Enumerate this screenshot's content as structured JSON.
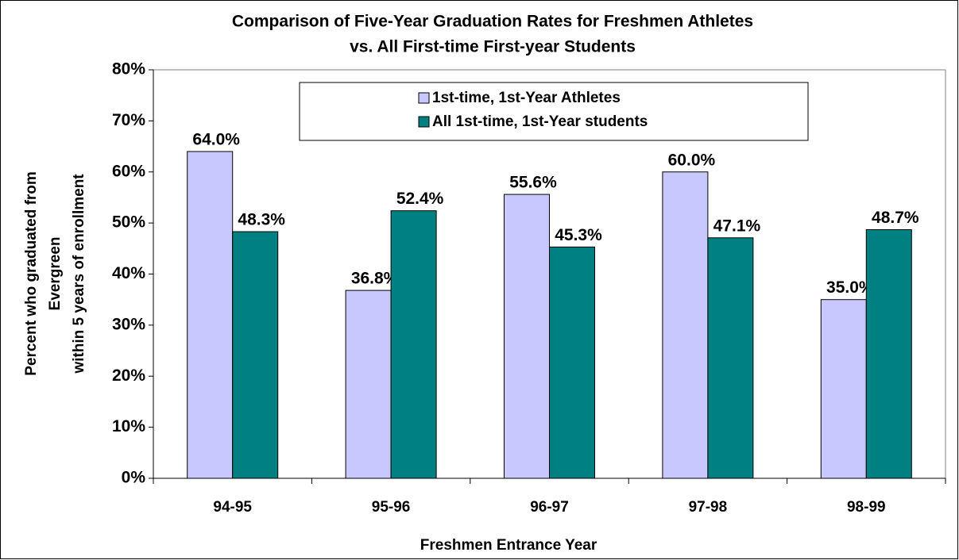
{
  "chart_data": {
    "type": "bar",
    "title": [
      "Comparison of Five-Year Graduation Rates for Freshmen Athletes",
      "vs. All First-time First-year Students"
    ],
    "x_label": "Freshmen Entrance Year",
    "y_label": [
      "Percent who graduated from",
      "Evergreen",
      "within 5 years of enrollment"
    ],
    "categories": [
      "94-95",
      "95-96",
      "96-97",
      "97-98",
      "98-99"
    ],
    "series": [
      {
        "name": "1st-time, 1st-Year Athletes",
        "color": "#c8c8ff",
        "values": [
          64.0,
          36.8,
          55.6,
          60.0,
          35.0
        ],
        "value_labels": [
          "64.0%",
          "36.8%",
          "55.6%",
          "60.0%",
          "35.0%"
        ]
      },
      {
        "name": "All 1st-time, 1st-Year students",
        "color": "#008080",
        "values": [
          48.3,
          52.4,
          45.3,
          47.1,
          48.7
        ],
        "value_labels": [
          "48.3%",
          "52.4%",
          "45.3%",
          "47.1%",
          "48.7%"
        ]
      }
    ],
    "ylim": [
      0,
      80
    ],
    "yticks": [
      {
        "value": 0,
        "label": "0%"
      },
      {
        "value": 10,
        "label": "10%"
      },
      {
        "value": 20,
        "label": "20%"
      },
      {
        "value": 30,
        "label": "30%"
      },
      {
        "value": 40,
        "label": "40%"
      },
      {
        "value": 50,
        "label": "50%"
      },
      {
        "value": 60,
        "label": "60%"
      },
      {
        "value": 70,
        "label": "70%"
      },
      {
        "value": 80,
        "label": "80%"
      }
    ],
    "grid": false,
    "legend": "top"
  }
}
